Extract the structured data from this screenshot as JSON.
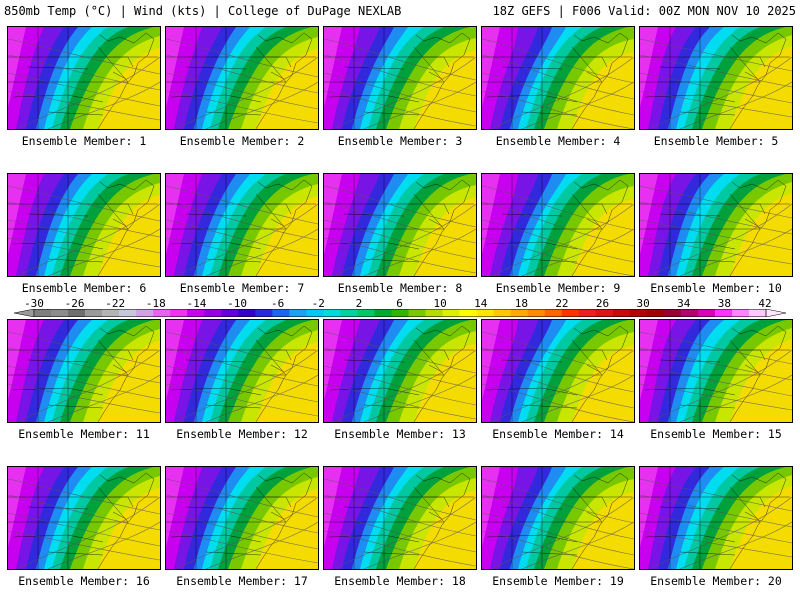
{
  "header": {
    "left_title": "850mb Temp (°C) | Wind (kts) | College of DuPage NEXLAB",
    "right_title": "18Z GEFS | F006 Valid: 00Z MON NOV 10 2025"
  },
  "members": [
    {
      "label": "Ensemble Member: 1"
    },
    {
      "label": "Ensemble Member: 2"
    },
    {
      "label": "Ensemble Member: 3"
    },
    {
      "label": "Ensemble Member: 4"
    },
    {
      "label": "Ensemble Member: 5"
    },
    {
      "label": "Ensemble Member: 6"
    },
    {
      "label": "Ensemble Member: 7"
    },
    {
      "label": "Ensemble Member: 8"
    },
    {
      "label": "Ensemble Member: 9"
    },
    {
      "label": "Ensemble Member: 10"
    },
    {
      "label": "Ensemble Member: 11"
    },
    {
      "label": "Ensemble Member: 12"
    },
    {
      "label": "Ensemble Member: 13"
    },
    {
      "label": "Ensemble Member: 14"
    },
    {
      "label": "Ensemble Member: 15"
    },
    {
      "label": "Ensemble Member: 16"
    },
    {
      "label": "Ensemble Member: 17"
    },
    {
      "label": "Ensemble Member: 18"
    },
    {
      "label": "Ensemble Member: 19"
    },
    {
      "label": "Ensemble Member: 20"
    }
  ],
  "colorbar": {
    "tick_labels": [
      "-30",
      "-26",
      "-22",
      "-18",
      "-14",
      "-10",
      "-6",
      "-2",
      "2",
      "6",
      "10",
      "14",
      "18",
      "22",
      "26",
      "30",
      "34",
      "38",
      "42"
    ],
    "colors": [
      "#7f7f7f",
      "#8c8c8c",
      "#6e6e6e",
      "#9a9a9a",
      "#b4b4b4",
      "#c8c8dc",
      "#d2a0e6",
      "#e664f0",
      "#f032f0",
      "#c800f0",
      "#9600e6",
      "#6400dc",
      "#3200c8",
      "#2828dc",
      "#1e64f0",
      "#1ea0f0",
      "#00c8f0",
      "#00dcdc",
      "#00d2a0",
      "#00c864",
      "#00aa32",
      "#32b400",
      "#78c800",
      "#b4dc00",
      "#dcf000",
      "#ffff00",
      "#ffe600",
      "#ffc800",
      "#ffaa00",
      "#ff8c00",
      "#ff6400",
      "#ff3200",
      "#f01e1e",
      "#dc1414",
      "#c80a0a",
      "#b40000",
      "#a00000",
      "#960032",
      "#b4006e",
      "#dc00b4",
      "#ff32ff",
      "#ff82ff",
      "#ffc8ff"
    ]
  }
}
